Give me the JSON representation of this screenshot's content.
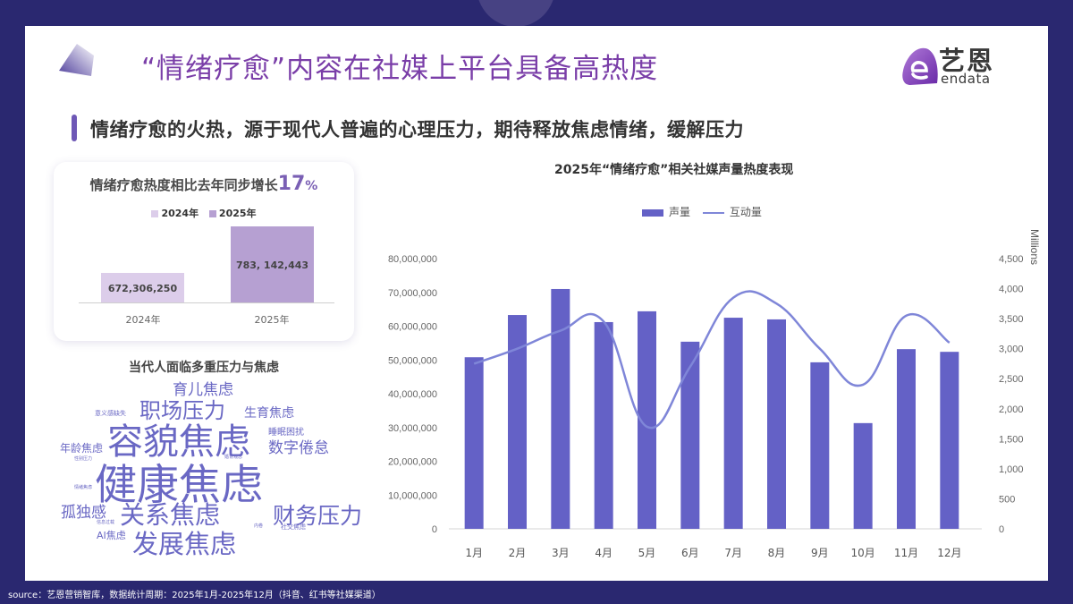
{
  "page": {
    "title": "“情绪疗愈”内容在社媒上平台具备高热度",
    "subtitle": "情绪疗愈的火热，源于现代人普遍的心理压力，期待释放焦虑情绪，缓解压力",
    "logo": {
      "cn": "艺恩",
      "en": "endata"
    },
    "footer": "source：艺恩营销智库，数据统计周期：2025年1月-2025年12月（抖音、红书等社媒渠道）"
  },
  "colors": {
    "background": "#2a2870",
    "title": "#7a3ea8",
    "accent": "#6e58b6",
    "bar_2024": "#dccdea",
    "bar_2025": "#b6a0d2",
    "bar_main": "#6461c6",
    "line_main": "#7f86d8",
    "wordcloud": "#6a68c4"
  },
  "yoy_card": {
    "title_prefix": "情绪疗愈热度相比去年同步增长",
    "pct_value": "17",
    "pct_sign": "%",
    "legend": [
      "2024年",
      "2025年"
    ],
    "bars": [
      {
        "label": "2024年",
        "value_label": "672,306,250"
      },
      {
        "label": "2025年",
        "value_label": "783, 142,443"
      }
    ]
  },
  "wordcloud": {
    "title": "当代人面临多重压力与焦虑",
    "words": [
      {
        "text": "健康焦虑",
        "size": 46
      },
      {
        "text": "容貌焦虑",
        "size": 40
      },
      {
        "text": "关系焦虑",
        "size": 30
      },
      {
        "text": "发展焦虑",
        "size": 30
      },
      {
        "text": "职场压力",
        "size": 26
      },
      {
        "text": "财务压力",
        "size": 24
      },
      {
        "text": "孤独感",
        "size": 17
      },
      {
        "text": "育儿焦虑",
        "size": 16
      },
      {
        "text": "数字倦怠",
        "size": 16
      },
      {
        "text": "生育焦虑",
        "size": 13
      },
      {
        "text": "年龄焦虑",
        "size": 11
      },
      {
        "text": "睡眠困扰",
        "size": 10
      },
      {
        "text": "AI焦虑",
        "size": 10
      },
      {
        "text": "意义感缺失",
        "size": 8
      },
      {
        "text": "社交焦虑",
        "size": 7
      },
      {
        "text": "性别压力",
        "size": 5
      },
      {
        "text": "情绪焦虑",
        "size": 5
      },
      {
        "text": "信息过载",
        "size": 5
      },
      {
        "text": "婚育观念",
        "size": 5
      },
      {
        "text": "内卷",
        "size": 5
      }
    ]
  },
  "chart_data": [
    {
      "type": "bar",
      "title": "情绪疗愈热度相比去年同步增长17%",
      "categories": [
        "2024年",
        "2025年"
      ],
      "values": [
        672306250,
        783142443
      ],
      "legend": [
        "2024年",
        "2025年"
      ],
      "data_labels": [
        "672,306,250",
        "783, 142,443"
      ],
      "grid": false
    },
    {
      "type": "bar",
      "title": "2025年“情绪疗愈”相关社媒声量热度表现",
      "categories": [
        "1月",
        "2月",
        "3月",
        "4月",
        "5月",
        "6月",
        "7月",
        "8月",
        "9月",
        "10月",
        "11月",
        "12月"
      ],
      "series": [
        {
          "name": "声量",
          "type": "bar",
          "axis": "left",
          "values": [
            50800000,
            63300000,
            71000000,
            61200000,
            64400000,
            55400000,
            62500000,
            62000000,
            49300000,
            31300000,
            53200000,
            52400000
          ]
        },
        {
          "name": "互动量",
          "type": "line",
          "axis": "right",
          "unit": "Millions",
          "smooth": true,
          "values": [
            2750,
            3000,
            3300,
            3450,
            1700,
            2700,
            3850,
            3750,
            3000,
            2400,
            3550,
            3100
          ]
        }
      ],
      "legend": [
        "声量",
        "互动量"
      ],
      "legend_position": "top",
      "y_left": {
        "ticks": [
          "0",
          "10,000,000",
          "20,000,000",
          "30,000,000",
          "40,000,000",
          "50,000,000",
          "60,000,000",
          "70,000,000",
          "80,000,000"
        ],
        "range": [
          0,
          80000000
        ]
      },
      "y_right": {
        "label": "Millions",
        "ticks": [
          "0",
          "500",
          "1,000",
          "1,500",
          "2,000",
          "2,500",
          "3,000",
          "3,500",
          "4,000",
          "4,500"
        ],
        "range": [
          0,
          4500
        ]
      },
      "xlabel": "",
      "ylabel": "",
      "grid": false
    }
  ]
}
